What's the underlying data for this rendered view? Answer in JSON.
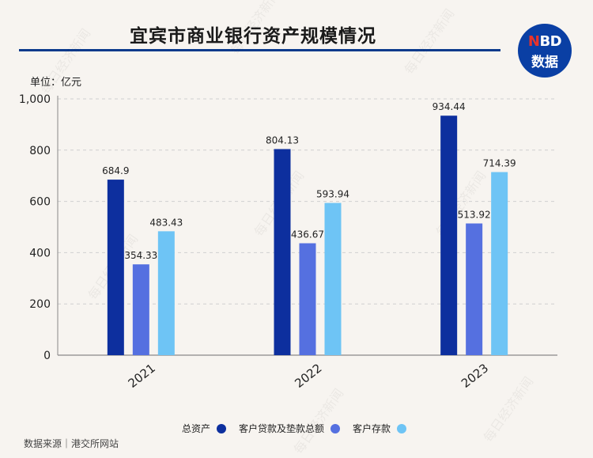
{
  "header": {
    "title": "宜宾市商业银行资产规模情况",
    "logo_line1_highlight": "N",
    "logo_line1_rest": "BD",
    "logo_line2": "数据"
  },
  "unit_label": "单位：亿元",
  "source_label": "数据来源｜港交所网站",
  "watermark_text": "每日经济新闻",
  "colors": {
    "total_assets": "#0d2f9e",
    "loans": "#5570e0",
    "deposits": "#6ec4f5",
    "title_rule": "#0b3a8c",
    "grid": "#cfcfcf"
  },
  "chart_data": {
    "type": "bar",
    "title": "宜宾市商业银行资产规模情况",
    "categories": [
      "2021",
      "2022",
      "2023"
    ],
    "series": [
      {
        "name": "总资产",
        "values": [
          684.9,
          804.13,
          934.44
        ]
      },
      {
        "name": "客户贷款及垫款总额",
        "values": [
          354.33,
          436.67,
          513.92
        ]
      },
      {
        "name": "客户存款",
        "values": [
          483.43,
          593.94,
          714.39
        ]
      }
    ],
    "value_labels": [
      [
        "684.9",
        "804.13",
        "934.44"
      ],
      [
        "354.33",
        "436.67",
        "513.92"
      ],
      [
        "483.43",
        "593.94",
        "714.39"
      ]
    ],
    "yticks": [
      "0",
      "200",
      "400",
      "600",
      "800",
      "1,000"
    ],
    "ylim": [
      0,
      1000
    ],
    "grid": true,
    "legend_position": "bottom"
  }
}
